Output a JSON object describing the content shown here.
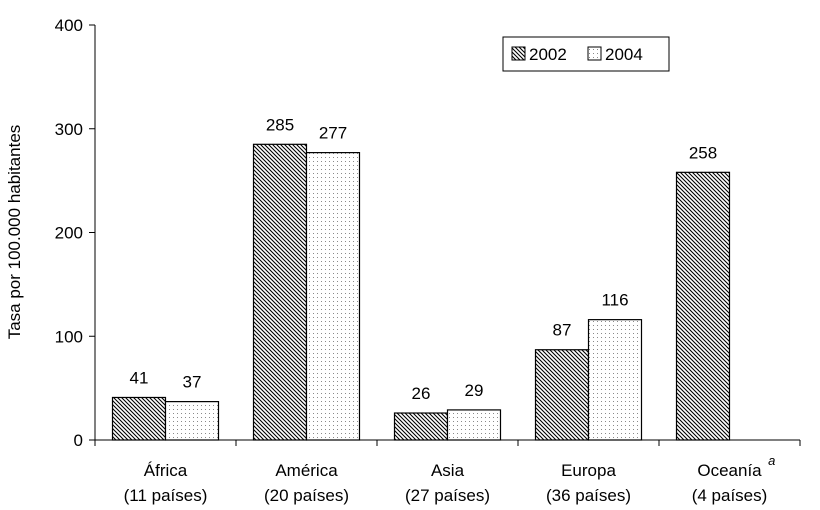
{
  "chart_data": {
    "type": "bar",
    "title": "",
    "xlabel": "",
    "ylabel": "Tasa por 100.000 habitantes",
    "ylim": [
      0,
      400
    ],
    "yticks": [
      "0",
      "100",
      "200",
      "300",
      "400"
    ],
    "grid": false,
    "legend_position": "top-right",
    "categories": [
      {
        "name": "África",
        "sub": "(11 países)",
        "note": ""
      },
      {
        "name": "América",
        "sub": "(20 países)",
        "note": ""
      },
      {
        "name": "Asia",
        "sub": "(27 países)",
        "note": ""
      },
      {
        "name": "Europa",
        "sub": "(36 países)",
        "note": ""
      },
      {
        "name": "Oceanía",
        "sub": "(4 países)",
        "note": "a"
      }
    ],
    "series": [
      {
        "name": "2002",
        "pattern": "diagonal-hatch",
        "values": [
          41,
          285,
          26,
          87,
          258
        ]
      },
      {
        "name": "2004",
        "pattern": "light-dots",
        "values": [
          37,
          277,
          29,
          116,
          null
        ]
      }
    ]
  }
}
